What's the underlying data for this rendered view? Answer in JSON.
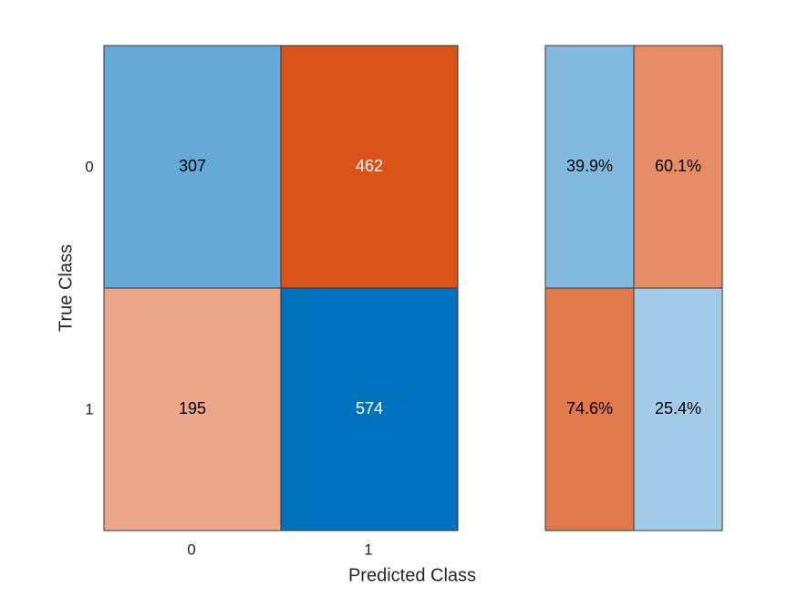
{
  "chart_data": {
    "type": "heatmap",
    "xlabel": "Predicted Class",
    "ylabel": "True Class",
    "x_categories": [
      "0",
      "1"
    ],
    "y_categories": [
      "0",
      "1"
    ],
    "matrix": [
      [
        307,
        462
      ],
      [
        195,
        574
      ]
    ],
    "row_summary": {
      "labels": [
        [
          "39.9%",
          "60.1%"
        ],
        [
          "74.6%",
          "25.4%"
        ]
      ],
      "values": [
        [
          39.9,
          60.1
        ],
        [
          74.6,
          25.4
        ]
      ]
    },
    "colors": {
      "correct": "#0072bd",
      "incorrect": "#d95319",
      "border": "#333333",
      "text_dark": "#000000",
      "text_light": "#ffffff"
    }
  }
}
